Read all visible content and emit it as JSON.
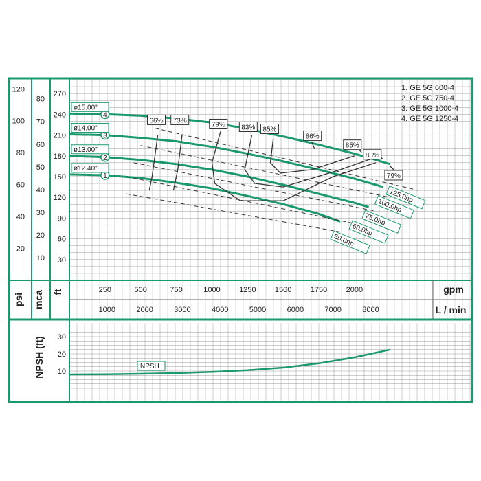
{
  "chart_data": [
    {
      "type": "line",
      "title": "",
      "legend": [
        "1. GE 5G 600-4",
        "2. GE 5G 750-4",
        "3. GE 5G 1000-4",
        "4. GE 5G 1250-4"
      ],
      "axes": {
        "x_gpm": {
          "label": "gpm",
          "ticks": [
            "250",
            "500",
            "750",
            "1000",
            "1250",
            "1500",
            "1750",
            "2000"
          ],
          "range": [
            0,
            2550
          ]
        },
        "x_lmin": {
          "label": "L / min",
          "ticks": [
            "1000",
            "2000",
            "3000",
            "4000",
            "5000",
            "6000",
            "7000",
            "8000"
          ]
        },
        "y_ft": {
          "label": "ft",
          "ticks": [
            "30",
            "60",
            "90",
            "120",
            "150",
            "180",
            "210",
            "240",
            "270"
          ],
          "range": [
            0,
            290
          ]
        },
        "y_mca": {
          "label": "mca",
          "ticks": [
            "10",
            "20",
            "30",
            "40",
            "50",
            "60",
            "70",
            "80"
          ]
        },
        "y_psi": {
          "label": "psi",
          "ticks": [
            "20",
            "40",
            "60",
            "80",
            "100",
            "120"
          ]
        }
      },
      "grid": true,
      "series": [
        {
          "name": "ø15.00\"",
          "marker": "4",
          "x": [
            0,
            250,
            500,
            750,
            1000,
            1250,
            1500,
            1750,
            2000,
            2250
          ],
          "y": [
            241,
            240,
            238,
            234,
            228,
            219,
            208,
            196,
            183,
            168
          ]
        },
        {
          "name": "ø14.00\"",
          "marker": "3",
          "x": [
            0,
            250,
            500,
            750,
            1000,
            1250,
            1500,
            1750,
            2000,
            2200
          ],
          "y": [
            211,
            210,
            206,
            201,
            193,
            183,
            172,
            160,
            147,
            135
          ]
        },
        {
          "name": "ø13.00\"",
          "marker": "2",
          "x": [
            0,
            250,
            500,
            750,
            1000,
            1250,
            1500,
            1750,
            2000,
            2100
          ],
          "y": [
            180,
            178,
            174,
            168,
            160,
            150,
            138,
            125,
            112,
            106
          ]
        },
        {
          "name": "ø12.40\"",
          "marker": "1",
          "x": [
            0,
            250,
            500,
            750,
            1000,
            1250,
            1500,
            1750,
            1900
          ],
          "y": [
            153,
            152,
            148,
            141,
            133,
            122,
            110,
            96,
            85
          ]
        }
      ],
      "efficiency_labels": [
        "66%",
        "73%",
        "79%",
        "83%",
        "85%",
        "86%",
        "85%",
        "83%",
        "79%"
      ],
      "power_lines": [
        "125.0hp",
        "100.0hp",
        "75.0hp",
        "60.0hp",
        "50.0hp"
      ]
    },
    {
      "type": "line",
      "title": "",
      "ylabel": "NPSH (ft)",
      "y_ticks": [
        "10",
        "20",
        "30"
      ],
      "ylim": [
        0,
        38
      ],
      "series": [
        {
          "name": "NPSH",
          "x": [
            0,
            250,
            500,
            750,
            1000,
            1250,
            1500,
            1750,
            2000,
            2250
          ],
          "y": [
            8.0,
            8.1,
            8.4,
            8.8,
            9.5,
            10.5,
            12.0,
            14.5,
            18.0,
            22.5
          ]
        }
      ]
    }
  ]
}
